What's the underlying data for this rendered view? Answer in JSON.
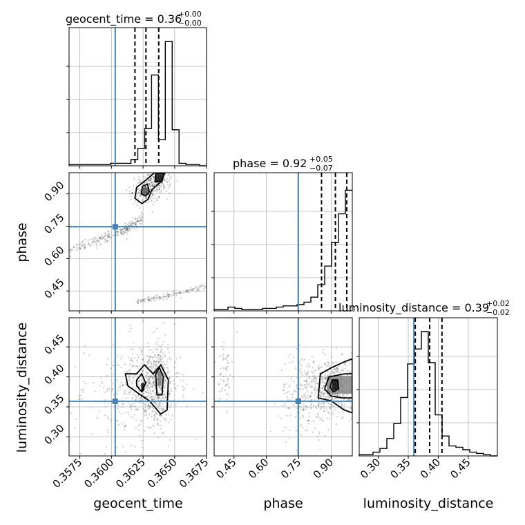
{
  "chart_data": {
    "type": "corner",
    "colors": {
      "truth": "#4682b4",
      "hist": "#000000",
      "grid": "#b0b0b0"
    },
    "parameters": [
      {
        "name": "geocent_time",
        "xlabel": "geocent_time",
        "title_main": "geocent_time = 0.36",
        "title_plus": "+0.00",
        "title_minus": "−0.00",
        "range": [
          0.35665,
          0.36752
        ],
        "ticks": [
          0.3575,
          0.36,
          0.3625,
          0.365,
          0.3675
        ],
        "tick_labels": [
          "0.3575",
          "0.3600",
          "0.3625",
          "0.3650",
          "0.3675"
        ],
        "truth": 0.3603,
        "quantiles": [
          0.36186,
          0.36273,
          0.36374
        ],
        "hist_edges_range": [
          0.35665,
          0.36752
        ],
        "hist_counts": [
          0.01,
          0.01,
          0.01,
          0.01,
          0.01,
          0.01,
          0.02,
          0.02,
          0.02,
          0.05,
          0.14,
          0.3,
          0.73,
          0.21,
          1.0,
          0.29,
          0.02,
          0.01,
          0.01,
          0.0
        ]
      },
      {
        "name": "phase",
        "xlabel": "phase",
        "ylabel": "phase",
        "title_main": "phase = 0.92",
        "title_plus": "+0.05",
        "title_minus": "−0.07",
        "range": [
          0.358,
          0.998
        ],
        "ticks": [
          0.45,
          0.6,
          0.75,
          0.9
        ],
        "tick_labels": [
          "0.45",
          "0.60",
          "0.75",
          "0.90"
        ],
        "truth": 0.7475,
        "quantiles": [
          0.8554,
          0.9196,
          0.9723
        ],
        "hist_edges_range": [
          0.358,
          0.998
        ],
        "hist_counts": [
          0.01,
          0.01,
          0.03,
          0.02,
          0.01,
          0.01,
          0.01,
          0.02,
          0.02,
          0.03,
          0.04,
          0.04,
          0.05,
          0.07,
          0.11,
          0.21,
          0.36,
          0.55,
          0.78,
          0.97
        ]
      },
      {
        "name": "luminosity_distance",
        "xlabel": "luminosity_distance",
        "ylabel": "luminosity_distance",
        "title_main": "luminosity_distance = 0.39",
        "title_plus": "+0.02",
        "title_minus": "−0.02",
        "range": [
          0.2683,
          0.4985
        ],
        "ticks": [
          0.3,
          0.35,
          0.4,
          0.45
        ],
        "tick_labels": [
          "0.30",
          "0.35",
          "0.40",
          "0.45"
        ],
        "truth": 0.3594,
        "quantiles": [
          0.3617,
          0.3857,
          0.4062
        ],
        "hist_edges_range": [
          0.2683,
          0.4985
        ],
        "hist_counts": [
          0.01,
          0.01,
          0.03,
          0.06,
          0.14,
          0.26,
          0.47,
          0.74,
          0.86,
          1.0,
          0.75,
          0.33,
          0.16,
          0.08,
          0.07,
          0.05,
          0.03,
          0.02,
          0.01,
          0.0
        ]
      }
    ],
    "pairs": [
      {
        "x": "geocent_time",
        "y": "phase",
        "samples": [
          {
            "kind": "band",
            "x": [
              0.3566,
              0.359,
              0.361,
              0.3625
            ],
            "y": [
              0.64,
              0.69,
              0.73,
              0.79
            ],
            "n": 220,
            "spread": 0.012
          },
          {
            "kind": "band",
            "x": [
              0.362,
              0.3645,
              0.3675
            ],
            "y": [
              0.4,
              0.43,
              0.47
            ],
            "n": 120,
            "spread": 0.006
          },
          {
            "kind": "blob",
            "cx": 0.3627,
            "cy": 0.915,
            "sx": 0.0006,
            "sy": 0.035,
            "n": 160
          },
          {
            "kind": "blob",
            "cx": 0.3637,
            "cy": 0.965,
            "sx": 0.0005,
            "sy": 0.03,
            "n": 200
          }
        ],
        "contours": [
          {
            "level": "outer",
            "points": [
              [
                0.36185,
                0.88
              ],
              [
                0.362,
                0.93
              ],
              [
                0.3628,
                0.968
              ],
              [
                0.3634,
                0.998
              ],
              [
                0.3642,
                0.998
              ],
              [
                0.364,
                0.96
              ],
              [
                0.3632,
                0.92
              ],
              [
                0.3629,
                0.875
              ],
              [
                0.3624,
                0.855
              ]
            ]
          },
          {
            "level": "inner",
            "points": [
              [
                0.36235,
                0.9
              ],
              [
                0.36245,
                0.935
              ],
              [
                0.36285,
                0.945
              ],
              [
                0.363,
                0.91
              ],
              [
                0.3627,
                0.89
              ]
            ]
          },
          {
            "level": "inner",
            "points": [
              [
                0.36345,
                0.955
              ],
              [
                0.3635,
                0.995
              ],
              [
                0.3641,
                0.995
              ],
              [
                0.364,
                0.96
              ]
            ]
          }
        ],
        "density_cells": [
          {
            "x": [
              0.3635,
              0.364
            ],
            "y": [
              0.955,
              0.998
            ],
            "shade": "#111111"
          },
          {
            "x": [
              0.36245,
              0.36295
            ],
            "y": [
              0.895,
              0.93
            ],
            "shade": "#555555"
          }
        ],
        "truth_x": 0.3603,
        "truth_y": 0.7475
      },
      {
        "x": "geocent_time",
        "y": "luminosity_distance",
        "samples": [
          {
            "kind": "blob",
            "cx": 0.363,
            "cy": 0.385,
            "sx": 0.0012,
            "sy": 0.03,
            "n": 520
          },
          {
            "kind": "blob",
            "cx": 0.3637,
            "cy": 0.4,
            "sx": 0.0004,
            "sy": 0.035,
            "n": 200
          },
          {
            "kind": "blob",
            "cx": 0.361,
            "cy": 0.36,
            "sx": 0.0025,
            "sy": 0.05,
            "n": 160
          }
        ],
        "contours": [
          {
            "level": "outer",
            "points": [
              [
                0.3611,
                0.405
              ],
              [
                0.362,
                0.405
              ],
              [
                0.3626,
                0.42
              ],
              [
                0.3633,
                0.405
              ],
              [
                0.3639,
                0.42
              ],
              [
                0.3645,
                0.395
              ],
              [
                0.3644,
                0.345
              ],
              [
                0.3639,
                0.338
              ],
              [
                0.363,
                0.36
              ],
              [
                0.3623,
                0.37
              ],
              [
                0.3613,
                0.385
              ]
            ]
          },
          {
            "level": "inner",
            "points": [
              [
                0.362,
                0.395
              ],
              [
                0.3624,
                0.405
              ],
              [
                0.3627,
                0.39
              ],
              [
                0.3624,
                0.375
              ],
              [
                0.362,
                0.385
              ]
            ]
          },
          {
            "level": "inner",
            "points": [
              [
                0.3635,
                0.405
              ],
              [
                0.3638,
                0.415
              ],
              [
                0.3641,
                0.4
              ],
              [
                0.364,
                0.37
              ],
              [
                0.3636,
                0.37
              ]
            ]
          }
        ],
        "density_cells": [
          {
            "x": [
              0.36235,
              0.3626
            ],
            "y": [
              0.376,
              0.39
            ],
            "shade": "#111111"
          },
          {
            "x": [
              0.36365,
              0.36395
            ],
            "y": [
              0.385,
              0.41
            ],
            "shade": "#777777"
          }
        ],
        "truth_x": 0.3603,
        "truth_y": 0.3594
      },
      {
        "x": "phase",
        "y": "luminosity_distance",
        "samples": [
          {
            "kind": "blob",
            "cx": 0.92,
            "cy": 0.385,
            "sx": 0.05,
            "sy": 0.022,
            "n": 520
          },
          {
            "kind": "blob",
            "cx": 0.78,
            "cy": 0.37,
            "sx": 0.06,
            "sy": 0.035,
            "n": 240
          },
          {
            "kind": "blob",
            "cx": 0.41,
            "cy": 0.41,
            "sx": 0.015,
            "sy": 0.03,
            "n": 60
          }
        ],
        "contours": [
          {
            "level": "outer",
            "points": [
              [
                0.84,
                0.365
              ],
              [
                0.85,
                0.405
              ],
              [
                0.9,
                0.415
              ],
              [
                0.96,
                0.425
              ],
              [
                0.998,
                0.43
              ],
              [
                0.998,
                0.34
              ],
              [
                0.96,
                0.345
              ],
              [
                0.9,
                0.36
              ]
            ]
          },
          {
            "level": "middle",
            "points": [
              [
                0.87,
                0.38
              ],
              [
                0.89,
                0.4
              ],
              [
                0.96,
                0.405
              ],
              [
                0.998,
                0.405
              ],
              [
                0.998,
                0.365
              ],
              [
                0.95,
                0.365
              ],
              [
                0.9,
                0.368
              ]
            ]
          },
          {
            "level": "inner",
            "points": [
              [
                0.895,
                0.383
              ],
              [
                0.905,
                0.395
              ],
              [
                0.93,
                0.395
              ],
              [
                0.935,
                0.38
              ],
              [
                0.91,
                0.375
              ]
            ]
          }
        ],
        "density_cells": [
          {
            "x": [
              0.88,
              0.998
            ],
            "y": [
              0.372,
              0.402
            ],
            "shade": "#888888"
          },
          {
            "x": [
              0.905,
              0.935
            ],
            "y": [
              0.378,
              0.395
            ],
            "shade": "#111111"
          }
        ],
        "truth_x": 0.7475,
        "truth_y": 0.3594
      }
    ]
  }
}
